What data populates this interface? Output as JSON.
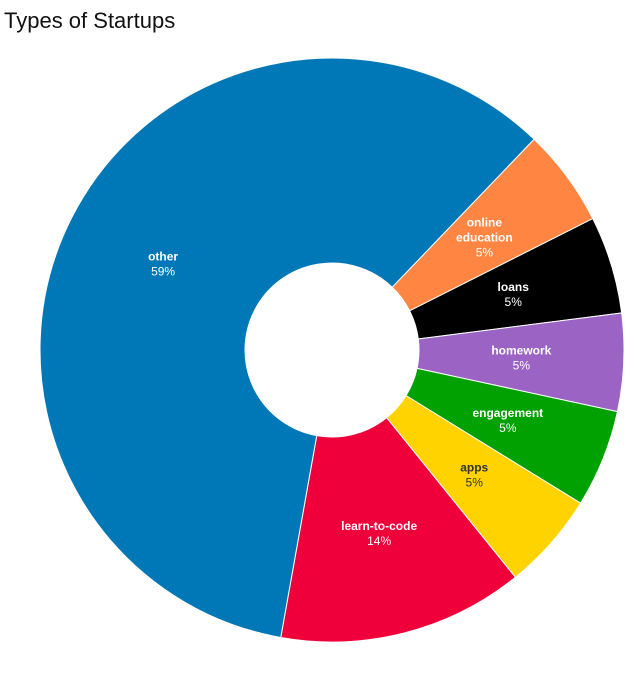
{
  "chart_data": {
    "type": "pie",
    "donut": true,
    "title": "Types of Startups",
    "slices": [
      {
        "label": "online education",
        "label_lines": [
          "online",
          "education"
        ],
        "value": 5.4,
        "display": "5%",
        "color": "#ff8642",
        "text_color": "#ffffff"
      },
      {
        "label": "loans",
        "label_lines": [
          "loans"
        ],
        "value": 5.4,
        "display": "5%",
        "color": "#000000",
        "text_color": "#ffffff"
      },
      {
        "label": "homework",
        "label_lines": [
          "homework"
        ],
        "value": 5.4,
        "display": "5%",
        "color": "#9b63c4",
        "text_color": "#ffffff"
      },
      {
        "label": "engagement",
        "label_lines": [
          "engagement"
        ],
        "value": 5.4,
        "display": "5%",
        "color": "#00a100",
        "text_color": "#ffffff"
      },
      {
        "label": "apps",
        "label_lines": [
          "apps"
        ],
        "value": 5.4,
        "display": "5%",
        "color": "#ffd300",
        "text_color": "#333333"
      },
      {
        "label": "learn-to-code",
        "label_lines": [
          "learn-to-code"
        ],
        "value": 13.6,
        "display": "14%",
        "color": "#f0003a",
        "text_color": "#ffffff"
      },
      {
        "label": "other",
        "label_lines": [
          "other"
        ],
        "value": 59.3,
        "display": "59%",
        "color": "#0077b6",
        "text_color": "#ffffff"
      }
    ],
    "start_angle_deg": 43.8
  }
}
